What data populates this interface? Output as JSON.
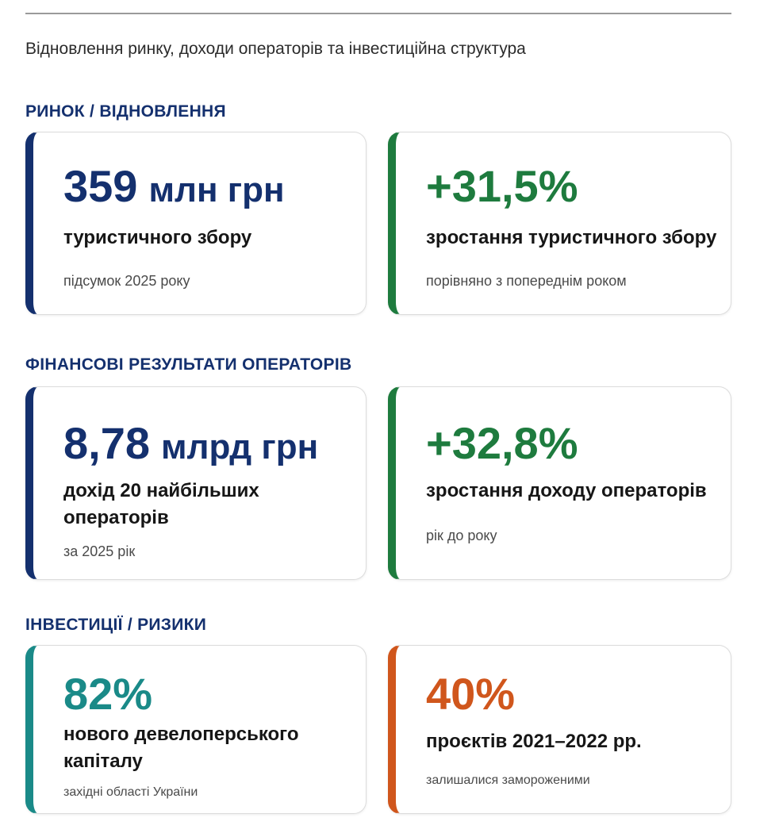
{
  "page": {
    "subtitle": "Відновлення ринку, доходи операторів та інвестиційна структура"
  },
  "colors": {
    "navy": "#14306e",
    "green": "#1e7b3e",
    "teal": "#1a8a88",
    "orange": "#d0561c"
  },
  "sections": [
    {
      "heading": "РИНОК / ВІДНОВЛЕННЯ",
      "cards": [
        {
          "value_number": "359",
          "value_unit": "млн грн",
          "label": "туристичного збору",
          "note": "підсумок 2025 року",
          "color": "navy"
        },
        {
          "value_number": "+31,5%",
          "label": "зростання туристичного збору",
          "note": "порівняно з попереднім роком",
          "color": "green"
        }
      ]
    },
    {
      "heading": "ФІНАНСОВІ РЕЗУЛЬТАТИ ОПЕРАТОРІВ",
      "cards": [
        {
          "value_number": "8,78",
          "value_unit": "млрд грн",
          "label": "дохід 20 найбільших операторів",
          "note": "за 2025 рік",
          "color": "navy"
        },
        {
          "value_number": "+32,8%",
          "label": "зростання доходу операторів",
          "note": "рік до року",
          "color": "green"
        }
      ]
    },
    {
      "heading": "ІНВЕСТИЦІЇ / РИЗИКИ",
      "cards": [
        {
          "value_number": "82%",
          "label": "нового девелоперського капіталу",
          "note": "західні області України",
          "color": "teal"
        },
        {
          "value_number": "40%",
          "label": "проєктів 2021–2022 рр.",
          "note": "залишалися замороженими",
          "color": "orange"
        }
      ]
    }
  ]
}
